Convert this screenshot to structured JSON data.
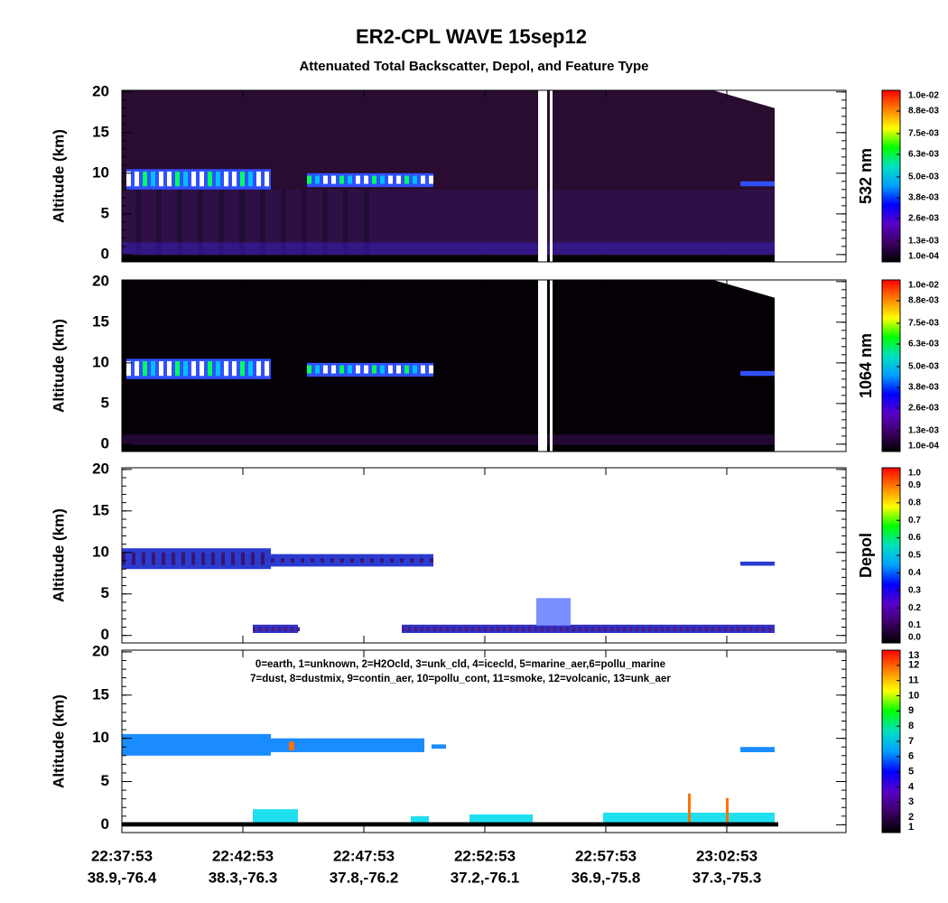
{
  "title": "ER2-CPL  WAVE  15sep12",
  "subtitle": "Attenuated Total Backscatter, Depol, and Feature Type",
  "x_ticks": [
    {
      "time": "22:37:53",
      "position": "38.9,-76.4"
    },
    {
      "time": "22:42:53",
      "position": "38.3,-76.3"
    },
    {
      "time": "22:47:53",
      "position": "37.8,-76.2"
    },
    {
      "time": "22:52:53",
      "position": "37.2,-76.1"
    },
    {
      "time": "22:57:53",
      "position": "36.9,-75.8"
    },
    {
      "time": "23:02:53",
      "position": "37.3,-75.3"
    }
  ],
  "chart_data": [
    {
      "type": "heatmap",
      "y_label": "Altitude (km)",
      "ylim": [
        -0.9,
        20.2
      ],
      "yticks": [
        0,
        5,
        10,
        15,
        20
      ],
      "colorbar": {
        "label": "532 nm",
        "clim": [
          0.0001,
          0.01
        ],
        "colormap": [
          "#000000",
          "#3c0064",
          "#5a00c8",
          "#0000ff",
          "#00a0ff",
          "#00e0c0",
          "#00ff00",
          "#ffff00",
          "#ff8000",
          "#ff0000"
        ],
        "ticks": [
          {
            "value": 0.01,
            "label": "1.0e-02"
          },
          {
            "value": 0.0088,
            "label": "8.8e-03"
          },
          {
            "value": 0.0075,
            "label": "7.5e-03"
          },
          {
            "value": 0.0063,
            "label": "6.3e-03"
          },
          {
            "value": 0.005,
            "label": "5.0e-03"
          },
          {
            "value": 0.0038,
            "label": "3.8e-03"
          },
          {
            "value": 0.0026,
            "label": "2.6e-03"
          },
          {
            "value": 0.0013,
            "label": "1.3e-03"
          },
          {
            "value": 0.0001,
            "label": "1.0e-04"
          }
        ]
      }
    },
    {
      "type": "heatmap",
      "y_label": "Altitude (km)",
      "ylim": [
        -0.9,
        20.2
      ],
      "yticks": [
        0,
        5,
        10,
        15,
        20
      ],
      "colorbar": {
        "label": "1064 nm",
        "clim": [
          0.0001,
          0.01
        ],
        "colormap": [
          "#000000",
          "#3c0064",
          "#5a00c8",
          "#0000ff",
          "#00a0ff",
          "#00e0c0",
          "#00ff00",
          "#ffff00",
          "#ff8000",
          "#ff0000"
        ],
        "ticks": [
          {
            "value": 0.01,
            "label": "1.0e-02"
          },
          {
            "value": 0.0088,
            "label": "8.8e-03"
          },
          {
            "value": 0.0075,
            "label": "7.5e-03"
          },
          {
            "value": 0.0063,
            "label": "6.3e-03"
          },
          {
            "value": 0.005,
            "label": "5.0e-03"
          },
          {
            "value": 0.0038,
            "label": "3.8e-03"
          },
          {
            "value": 0.0026,
            "label": "2.6e-03"
          },
          {
            "value": 0.0013,
            "label": "1.3e-03"
          },
          {
            "value": 0.0001,
            "label": "1.0e-04"
          }
        ]
      }
    },
    {
      "type": "heatmap",
      "y_label": "Altitude (km)",
      "ylim": [
        -0.9,
        20.2
      ],
      "yticks": [
        0,
        5,
        10,
        15,
        20
      ],
      "colorbar": {
        "label": "Depol",
        "clim": [
          0,
          1
        ],
        "colormap": [
          "#000000",
          "#3c0064",
          "#5a00c8",
          "#0000ff",
          "#00a0ff",
          "#00e0c0",
          "#00ff00",
          "#ffff00",
          "#ff8000",
          "#ff0000"
        ],
        "ticks": [
          {
            "value": 1,
            "label": "1.0"
          },
          {
            "value": 0.9,
            "label": "0.9"
          },
          {
            "value": 0.8,
            "label": "0.8"
          },
          {
            "value": 0.7,
            "label": "0.7"
          },
          {
            "value": 0.6,
            "label": "0.6"
          },
          {
            "value": 0.5,
            "label": "0.5"
          },
          {
            "value": 0.4,
            "label": "0.4"
          },
          {
            "value": 0.3,
            "label": "0.3"
          },
          {
            "value": 0.2,
            "label": "0.2"
          },
          {
            "value": 0.1,
            "label": "0.1"
          },
          {
            "value": 0,
            "label": "0.0"
          }
        ]
      }
    },
    {
      "type": "heatmap",
      "y_label": "Altitude (km)",
      "ylim": [
        -0.9,
        20.2
      ],
      "yticks": [
        0,
        5,
        10,
        15,
        20
      ],
      "legend": [
        "0=earth, 1=unknown, 2=H2Ocld, 3=unk_cld, 4=icecld, 5=marine_aer,6=pollu_marine",
        "7=dust, 8=dustmix, 9=contin_aer, 10=pollu_cont, 11=smoke, 12=volcanic, 13=unk_aer"
      ],
      "colorbar": {
        "clim": [
          1,
          13
        ],
        "colormap": [
          "#000000",
          "#3c0064",
          "#5a00c8",
          "#0000ff",
          "#00a0ff",
          "#00e0c0",
          "#00ff00",
          "#ffff00",
          "#ff8000",
          "#ff0000"
        ],
        "ticks": [
          13,
          12,
          11,
          10,
          9,
          8,
          7,
          6,
          5,
          4,
          3,
          2,
          1
        ]
      }
    }
  ]
}
